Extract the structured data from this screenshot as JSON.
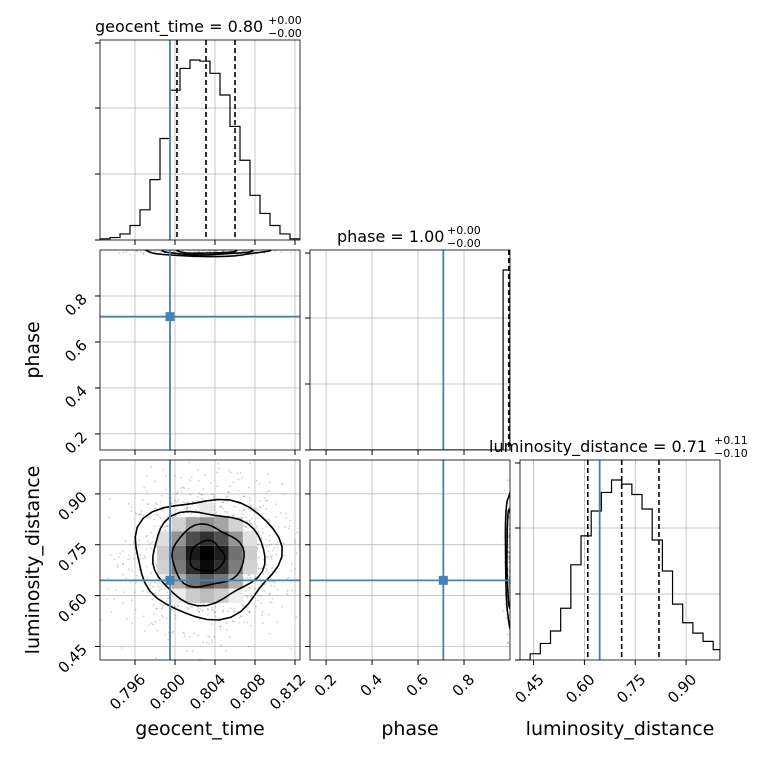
{
  "chart_data": {
    "type": "corner",
    "parameters": [
      "geocent_time",
      "phase",
      "luminosity_distance"
    ],
    "colors": {
      "truth": "#4682b4",
      "histogram": "#000000",
      "grid": "#b0b0b0"
    },
    "grid": true,
    "titles": [
      {
        "param": "geocent_time",
        "prefix": "geocent_time = 0.80",
        "upper": "+0.00",
        "lower": "−0.00"
      },
      {
        "param": "phase",
        "prefix": "phase = 1.00",
        "upper": "+0.00",
        "lower": "−0.00"
      },
      {
        "param": "luminosity_distance",
        "prefix": "luminosity_distance = 0.71",
        "upper": "+0.11",
        "lower": "−0.10"
      }
    ],
    "axes": {
      "geocent_time": {
        "range": [
          0.7925,
          0.8125
        ],
        "ticks": [
          0.796,
          0.8,
          0.804,
          0.808,
          0.812
        ],
        "tick_labels": [
          "0.796",
          "0.800",
          "0.804",
          "0.808",
          "0.812"
        ],
        "label": "geocent_time"
      },
      "phase": {
        "range": [
          0.13,
          1.0
        ],
        "ticks": [
          0.2,
          0.4,
          0.6,
          0.8
        ],
        "tick_labels": [
          "0.2",
          "0.4",
          "0.6",
          "0.8"
        ],
        "label": "phase"
      },
      "luminosity_distance": {
        "range": [
          0.41,
          1.0
        ],
        "ticks": [
          0.45,
          0.6,
          0.75,
          0.9
        ],
        "tick_labels": [
          "0.45",
          "0.60",
          "0.75",
          "0.90"
        ],
        "label": "luminosity_distance"
      }
    },
    "truths": {
      "geocent_time": 0.7995,
      "phase": 0.71,
      "luminosity_distance": 0.645
    },
    "quantiles": {
      "geocent_time": [
        0.8002,
        0.8031,
        0.806
      ],
      "phase": [
        0.999,
        0.9995,
        1.0
      ],
      "luminosity_distance": [
        0.61,
        0.71,
        0.82
      ]
    },
    "histograms": {
      "geocent_time": {
        "bin_edges": [
          0.7925,
          0.7935,
          0.7945,
          0.7955,
          0.7965,
          0.7975,
          0.7985,
          0.7995,
          0.8005,
          0.8015,
          0.8025,
          0.8035,
          0.8045,
          0.8055,
          0.8065,
          0.8075,
          0.8085,
          0.8095,
          0.8105,
          0.8115,
          0.8125
        ],
        "counts": [
          1,
          2,
          5,
          12,
          25,
          50,
          84,
          124,
          142,
          149,
          148,
          138,
          120,
          94,
          66,
          37,
          22,
          12,
          5,
          1
        ]
      },
      "phase": {
        "bin_edges": [
          0.13,
          0.17,
          0.21,
          0.25,
          0.29,
          0.33,
          0.37,
          0.41,
          0.45,
          0.49,
          0.53,
          0.57,
          0.61,
          0.65,
          0.69,
          0.73,
          0.77,
          0.81,
          0.85,
          0.89,
          0.93,
          0.97,
          1.0
        ],
        "counts": [
          0,
          0,
          0,
          0,
          0,
          0,
          0,
          0,
          0,
          0,
          0,
          0,
          0,
          0,
          0,
          0,
          0,
          0,
          0,
          0,
          0,
          170
        ]
      },
      "luminosity_distance": {
        "bin_edges": [
          0.41,
          0.44,
          0.47,
          0.5,
          0.53,
          0.56,
          0.59,
          0.62,
          0.65,
          0.68,
          0.71,
          0.74,
          0.77,
          0.8,
          0.83,
          0.86,
          0.89,
          0.92,
          0.95,
          0.98,
          1.0
        ],
        "counts": [
          0,
          3,
          8,
          14,
          25,
          46,
          60,
          72,
          81,
          87,
          85,
          80,
          73,
          58,
          43,
          27,
          18,
          13,
          9,
          5
        ]
      }
    },
    "pairs": [
      {
        "x": "geocent_time",
        "y": "phase",
        "density_center": [
          0.8031,
          0.995
        ],
        "contour_levels_ellipse_halfwidths": [
          [
            0.0062,
            0.025
          ],
          [
            0.0045,
            0.018
          ],
          [
            0.003,
            0.012
          ]
        ]
      },
      {
        "x": "geocent_time",
        "y": "luminosity_distance",
        "density_center": [
          0.8032,
          0.715
        ],
        "density_spread": [
          0.003,
          0.085
        ],
        "contour_halfwidths": [
          [
            0.0072,
            0.175
          ],
          [
            0.0056,
            0.135
          ],
          [
            0.0036,
            0.09
          ],
          [
            0.0017,
            0.045
          ]
        ]
      },
      {
        "x": "phase",
        "y": "luminosity_distance",
        "density_center": [
          1.0,
          0.715
        ],
        "density_spread": [
          0.02,
          0.085
        ]
      }
    ]
  }
}
